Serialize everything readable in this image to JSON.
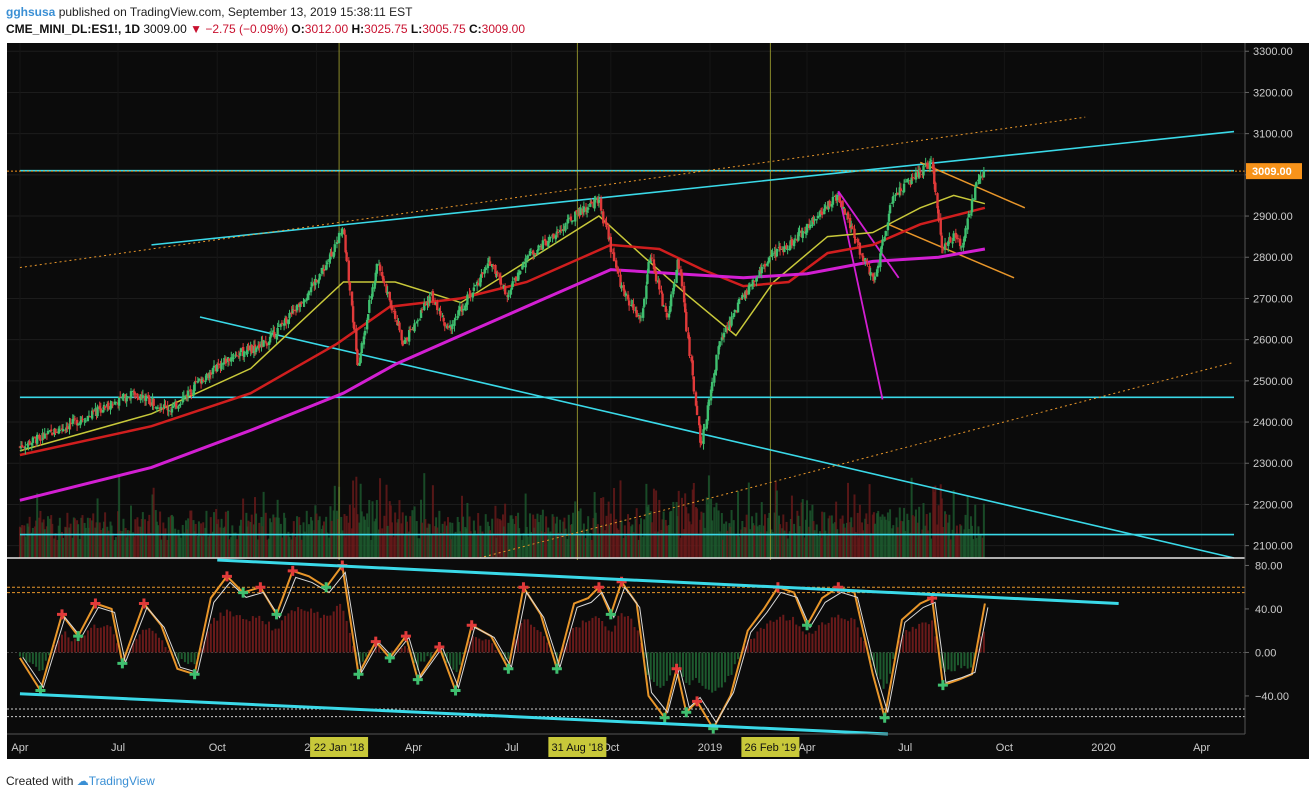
{
  "header": {
    "author": "gghsusa",
    "published_text": "published on TradingView.com, September 13, 2019 15:38:11 EST",
    "symbol": "CME_MINI_DL:ES1!, 1D",
    "last": "3009.00",
    "arrow": "▼",
    "change": "−2.75 (−0.09%)",
    "open_label": "O:",
    "open": "3012.00",
    "high_label": "H:",
    "high": "3025.75",
    "low_label": "L:",
    "low": "3005.75",
    "close_label": "C:",
    "close": "3009.00"
  },
  "footer": {
    "created_with": "Created with",
    "brand": "TradingView"
  },
  "colors": {
    "background": "#0b0b0b",
    "up": "#3fbf6f",
    "down": "#e03a3a",
    "cyan": "#3ad9e8",
    "sma_red": "#d01e1e",
    "sma_magenta": "#d21fd2",
    "sma_yellow": "#c8c83a",
    "orange": "#e8962a",
    "price_badge": "#f7931a"
  },
  "chart_data": [
    {
      "type": "candlestick",
      "title": "",
      "y_axis_ticks": [
        "3300.00",
        "3200.00",
        "3100.00",
        "3000.00",
        "2900.00",
        "2800.00",
        "2700.00",
        "2600.00",
        "2500.00",
        "2400.00",
        "2300.00",
        "2200.00",
        "2100.00"
      ],
      "ylim": [
        2070,
        3320
      ],
      "x_axis_ticks": [
        "Apr",
        "Jul",
        "Oct",
        "2018",
        "Apr",
        "Jul",
        "Oct",
        "2019",
        "Apr",
        "Jul",
        "Oct",
        "2020",
        "Apr"
      ],
      "x_dates": [
        "2017-04",
        "2017-07",
        "2017-10",
        "2018-01",
        "2018-04",
        "2018-07",
        "2018-10",
        "2019-01",
        "2019-04",
        "2019-07",
        "2019-10",
        "2020-01",
        "2020-04"
      ],
      "date_markers": [
        "22 Jan '18",
        "31 Aug '18",
        "26 Feb '19"
      ],
      "current_price_label": "3009.00",
      "price_path": [
        [
          "2017-04-01",
          2340
        ],
        [
          "2017-05-15",
          2390
        ],
        [
          "2017-06-15",
          2430
        ],
        [
          "2017-07-15",
          2470
        ],
        [
          "2017-08-20",
          2430
        ],
        [
          "2017-09-15",
          2500
        ],
        [
          "2017-10-15",
          2560
        ],
        [
          "2017-11-15",
          2590
        ],
        [
          "2017-12-15",
          2680
        ],
        [
          "2018-01-10",
          2780
        ],
        [
          "2018-01-26",
          2870
        ],
        [
          "2018-02-09",
          2540
        ],
        [
          "2018-02-27",
          2790
        ],
        [
          "2018-03-23",
          2590
        ],
        [
          "2018-04-18",
          2710
        ],
        [
          "2018-05-03",
          2620
        ],
        [
          "2018-06-12",
          2790
        ],
        [
          "2018-06-28",
          2710
        ],
        [
          "2018-07-15",
          2800
        ],
        [
          "2018-08-10",
          2850
        ],
        [
          "2018-08-31",
          2905
        ],
        [
          "2018-09-20",
          2940
        ],
        [
          "2018-10-11",
          2730
        ],
        [
          "2018-10-29",
          2640
        ],
        [
          "2018-11-07",
          2810
        ],
        [
          "2018-11-23",
          2640
        ],
        [
          "2018-12-03",
          2800
        ],
        [
          "2018-12-24",
          2340
        ],
        [
          "2019-01-10",
          2590
        ],
        [
          "2019-01-31",
          2700
        ],
        [
          "2019-02-26",
          2800
        ],
        [
          "2019-03-20",
          2840
        ],
        [
          "2019-04-15",
          2910
        ],
        [
          "2019-04-30",
          2950
        ],
        [
          "2019-05-15",
          2850
        ],
        [
          "2019-06-03",
          2740
        ],
        [
          "2019-06-20",
          2950
        ],
        [
          "2019-07-26",
          3030
        ],
        [
          "2019-08-05",
          2820
        ],
        [
          "2019-08-15",
          2850
        ],
        [
          "2019-08-23",
          2830
        ],
        [
          "2019-09-05",
          2970
        ],
        [
          "2019-09-13",
          3009
        ]
      ],
      "sma_yellow": [
        [
          "2017-04-01",
          2330
        ],
        [
          "2017-08-01",
          2420
        ],
        [
          "2017-11-01",
          2530
        ],
        [
          "2018-01-26",
          2740
        ],
        [
          "2018-03-15",
          2740
        ],
        [
          "2018-05-15",
          2690
        ],
        [
          "2018-07-15",
          2790
        ],
        [
          "2018-09-20",
          2900
        ],
        [
          "2018-11-01",
          2800
        ],
        [
          "2018-12-10",
          2710
        ],
        [
          "2019-01-25",
          2610
        ],
        [
          "2019-03-01",
          2740
        ],
        [
          "2019-04-20",
          2850
        ],
        [
          "2019-06-01",
          2860
        ],
        [
          "2019-07-15",
          2920
        ],
        [
          "2019-08-15",
          2950
        ],
        [
          "2019-09-13",
          2930
        ]
      ],
      "sma_red": [
        [
          "2017-04-01",
          2320
        ],
        [
          "2017-08-01",
          2390
        ],
        [
          "2017-11-01",
          2470
        ],
        [
          "2018-01-20",
          2590
        ],
        [
          "2018-03-10",
          2680
        ],
        [
          "2018-05-15",
          2700
        ],
        [
          "2018-07-15",
          2740
        ],
        [
          "2018-10-01",
          2830
        ],
        [
          "2018-11-15",
          2820
        ],
        [
          "2018-12-25",
          2770
        ],
        [
          "2019-02-01",
          2730
        ],
        [
          "2019-03-15",
          2740
        ],
        [
          "2019-04-20",
          2810
        ],
        [
          "2019-06-01",
          2830
        ],
        [
          "2019-07-15",
          2880
        ],
        [
          "2019-09-13",
          2920
        ]
      ],
      "sma_magenta": [
        [
          "2017-04-01",
          2210
        ],
        [
          "2017-08-01",
          2290
        ],
        [
          "2017-11-01",
          2380
        ],
        [
          "2018-01-26",
          2470
        ],
        [
          "2018-03-15",
          2540
        ],
        [
          "2018-06-01",
          2630
        ],
        [
          "2018-08-01",
          2700
        ],
        [
          "2018-10-01",
          2770
        ],
        [
          "2018-12-01",
          2760
        ],
        [
          "2019-02-01",
          2750
        ],
        [
          "2019-04-01",
          2760
        ],
        [
          "2019-06-01",
          2790
        ],
        [
          "2019-08-01",
          2800
        ],
        [
          "2019-09-13",
          2820
        ]
      ],
      "trend_lines": [
        {
          "color": "cyan",
          "from": [
            "2017-08-01",
            2830
          ],
          "to": [
            "2020-05-01",
            3105
          ]
        },
        {
          "color": "cyan",
          "from": [
            "2017-04-01",
            2460
          ],
          "to": [
            "2020-05-01",
            2460
          ]
        },
        {
          "color": "cyan",
          "from": [
            "2017-04-01",
            2127
          ],
          "to": [
            "2020-05-01",
            2127
          ]
        },
        {
          "color": "cyan",
          "from": [
            "2017-09-15",
            2655
          ],
          "to": [
            "2020-05-01",
            2070
          ]
        },
        {
          "color": "cyan",
          "from": [
            "2017-04-01",
            3010
          ],
          "to": [
            "2020-05-01",
            3010
          ]
        },
        {
          "color": "orange_dotted",
          "from": [
            "2017-04-01",
            2775
          ],
          "to": [
            "2019-12-15",
            3140
          ]
        },
        {
          "color": "orange_dotted",
          "from": [
            "2018-06-01",
            2070
          ],
          "to": [
            "2020-05-01",
            2545
          ]
        },
        {
          "color": "orange",
          "from": [
            "2019-07-15",
            3030
          ],
          "to": [
            "2019-10-20",
            2920
          ]
        },
        {
          "color": "orange",
          "from": [
            "2019-06-15",
            2880
          ],
          "to": [
            "2019-10-10",
            2750
          ]
        },
        {
          "color": "magenta",
          "from": [
            "2019-04-30",
            2960
          ],
          "to": [
            "2019-06-10",
            2455
          ]
        },
        {
          "color": "magenta",
          "from": [
            "2019-04-30",
            2960
          ],
          "to": [
            "2019-06-25",
            2750
          ]
        }
      ]
    },
    {
      "type": "line",
      "title": "",
      "y_axis_ticks": [
        "80.00",
        "40.00",
        "0.00",
        "−40.00"
      ],
      "ylim": [
        -75,
        85
      ],
      "levels": [
        60,
        55,
        -52,
        -59
      ],
      "stoch_path": [
        [
          "2017-04-01",
          -5
        ],
        [
          "2017-04-20",
          -35
        ],
        [
          "2017-05-10",
          35
        ],
        [
          "2017-05-25",
          15
        ],
        [
          "2017-06-10",
          45
        ],
        [
          "2017-06-25",
          40
        ],
        [
          "2017-07-05",
          -10
        ],
        [
          "2017-07-25",
          45
        ],
        [
          "2017-08-10",
          25
        ],
        [
          "2017-08-25",
          -15
        ],
        [
          "2017-09-10",
          -20
        ],
        [
          "2017-09-25",
          50
        ],
        [
          "2017-10-10",
          70
        ],
        [
          "2017-10-25",
          55
        ],
        [
          "2017-11-10",
          60
        ],
        [
          "2017-11-25",
          35
        ],
        [
          "2017-12-10",
          75
        ],
        [
          "2017-12-25",
          70
        ],
        [
          "2018-01-10",
          60
        ],
        [
          "2018-01-25",
          80
        ],
        [
          "2018-02-09",
          -20
        ],
        [
          "2018-02-25",
          10
        ],
        [
          "2018-03-10",
          -5
        ],
        [
          "2018-03-25",
          15
        ],
        [
          "2018-04-05",
          -25
        ],
        [
          "2018-04-25",
          5
        ],
        [
          "2018-05-10",
          -35
        ],
        [
          "2018-05-25",
          25
        ],
        [
          "2018-06-12",
          15
        ],
        [
          "2018-06-28",
          -15
        ],
        [
          "2018-07-12",
          60
        ],
        [
          "2018-07-28",
          35
        ],
        [
          "2018-08-12",
          -15
        ],
        [
          "2018-08-28",
          45
        ],
        [
          "2018-09-10",
          50
        ],
        [
          "2018-09-20",
          60
        ],
        [
          "2018-10-01",
          35
        ],
        [
          "2018-10-11",
          65
        ],
        [
          "2018-10-25",
          45
        ],
        [
          "2018-11-05",
          -40
        ],
        [
          "2018-11-20",
          -60
        ],
        [
          "2018-12-01",
          -15
        ],
        [
          "2018-12-10",
          -55
        ],
        [
          "2018-12-20",
          -45
        ],
        [
          "2019-01-04",
          -70
        ],
        [
          "2019-01-20",
          -40
        ],
        [
          "2019-02-05",
          20
        ],
        [
          "2019-02-20",
          40
        ],
        [
          "2019-03-05",
          60
        ],
        [
          "2019-03-20",
          55
        ],
        [
          "2019-04-01",
          25
        ],
        [
          "2019-04-15",
          50
        ],
        [
          "2019-04-30",
          60
        ],
        [
          "2019-05-15",
          55
        ],
        [
          "2019-06-01",
          -20
        ],
        [
          "2019-06-12",
          -60
        ],
        [
          "2019-06-28",
          30
        ],
        [
          "2019-07-15",
          45
        ],
        [
          "2019-07-26",
          50
        ],
        [
          "2019-08-05",
          -30
        ],
        [
          "2019-08-20",
          -25
        ],
        [
          "2019-09-01",
          -20
        ],
        [
          "2019-09-13",
          45
        ]
      ],
      "trend_lines": [
        {
          "color": "cyan",
          "from": [
            "2017-10-01",
            85
          ],
          "to": [
            "2020-01-15",
            45
          ]
        },
        {
          "color": "cyan",
          "from": [
            "2017-04-01",
            -38
          ],
          "to": [
            "2019-06-15",
            -75
          ]
        }
      ]
    }
  ]
}
